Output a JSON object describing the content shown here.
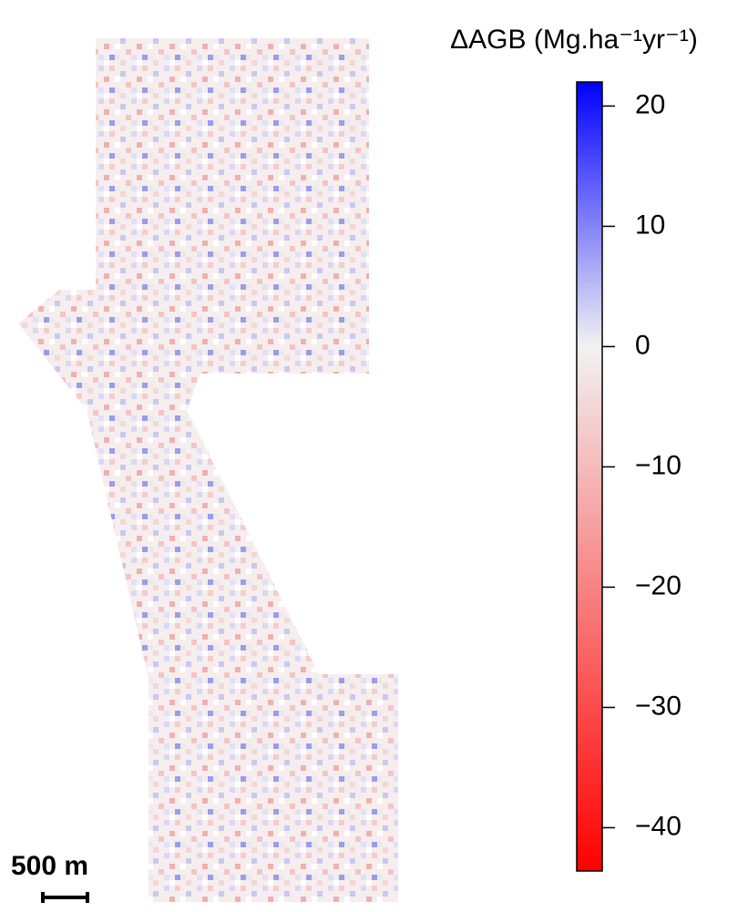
{
  "chart_data": {
    "type": "raster-map",
    "scale_bar": "500 m",
    "colorbar": {
      "title": "ΔAGB (Mg.ha⁻¹yr⁻¹)",
      "ylim": [
        -43.6,
        22
      ],
      "yticks": [
        20,
        10,
        0,
        {
          "value": -10,
          "label": "−10"
        },
        {
          "value": -20,
          "label": "−20"
        },
        {
          "value": -30,
          "label": "−30"
        },
        {
          "value": -40,
          "label": "−40"
        }
      ],
      "colors": {
        "low": "#ff0000",
        "mid": "#f2f2f2",
        "high": "#0000ff"
      }
    }
  }
}
